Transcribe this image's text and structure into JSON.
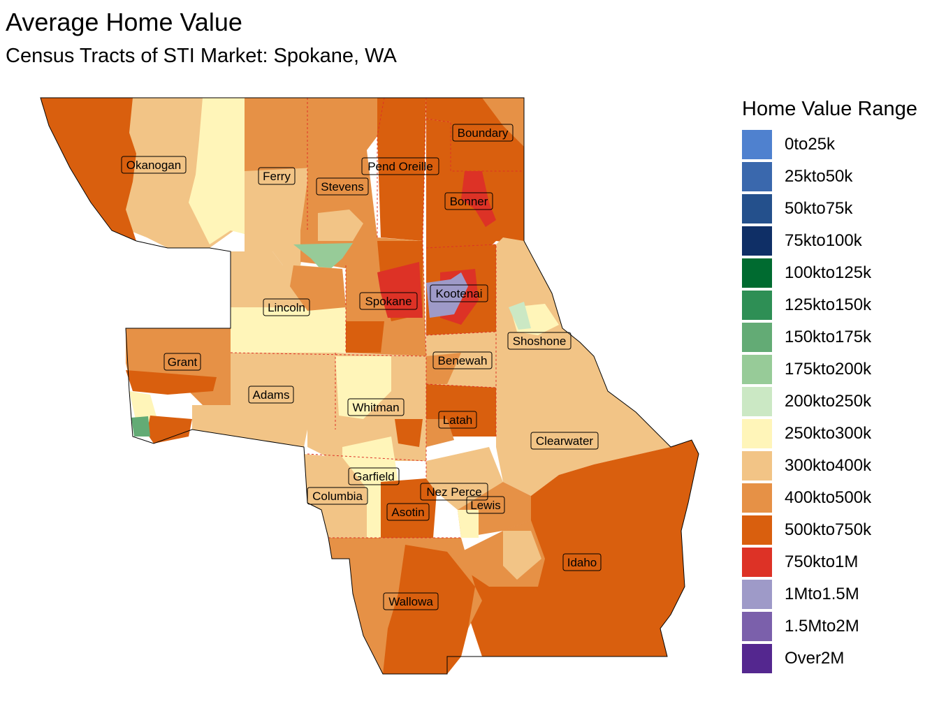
{
  "title": "Average Home Value",
  "subtitle": "Census Tracts of STI Market: Spokane, WA",
  "legend": {
    "title": "Home Value Range",
    "items": [
      {
        "label": "0to25k",
        "color": "#4f81cf"
      },
      {
        "label": "25kto50k",
        "color": "#3a68ad"
      },
      {
        "label": "50kto75k",
        "color": "#24508c"
      },
      {
        "label": "75kto100k",
        "color": "#0f2f66"
      },
      {
        "label": "100kto125k",
        "color": "#006b30"
      },
      {
        "label": "125kto150k",
        "color": "#2e8f55"
      },
      {
        "label": "150kto175k",
        "color": "#63ab75"
      },
      {
        "label": "175kto200k",
        "color": "#97cb98"
      },
      {
        "label": "200kto250k",
        "color": "#cbe8c4"
      },
      {
        "label": "250kto300k",
        "color": "#fff5b9"
      },
      {
        "label": "300kto400k",
        "color": "#f2c486"
      },
      {
        "label": "400kto500k",
        "color": "#e69146"
      },
      {
        "label": "500kto750k",
        "color": "#d95f0e"
      },
      {
        "label": "750kto1M",
        "color": "#dd3226"
      },
      {
        "label": "1Mto1.5M",
        "color": "#9e9ac8"
      },
      {
        "label": "1.5Mto2M",
        "color": "#7b60ab"
      },
      {
        "label": "Over2M",
        "color": "#54278f"
      }
    ]
  },
  "counties": [
    {
      "name": "Okanogan"
    },
    {
      "name": "Ferry"
    },
    {
      "name": "Stevens"
    },
    {
      "name": "Pend Oreille"
    },
    {
      "name": "Boundary"
    },
    {
      "name": "Bonner"
    },
    {
      "name": "Lincoln"
    },
    {
      "name": "Spokane"
    },
    {
      "name": "Kootenai"
    },
    {
      "name": "Shoshone"
    },
    {
      "name": "Grant"
    },
    {
      "name": "Benewah"
    },
    {
      "name": "Adams"
    },
    {
      "name": "Whitman"
    },
    {
      "name": "Latah"
    },
    {
      "name": "Clearwater"
    },
    {
      "name": "Garfield"
    },
    {
      "name": "Nez Perce"
    },
    {
      "name": "Columbia"
    },
    {
      "name": "Lewis"
    },
    {
      "name": "Asotin"
    },
    {
      "name": "Idaho"
    },
    {
      "name": "Wallowa"
    }
  ]
}
